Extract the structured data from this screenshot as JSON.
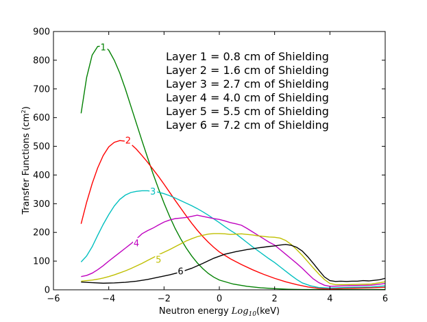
{
  "chart_data": {
    "type": "line",
    "xlabel_prefix": "Neutron energy ",
    "xlabel_log_base": "Log",
    "xlabel_log_sub": "10",
    "xlabel_unit": "(keV)",
    "ylabel_main": "Transfer Functions (cm",
    "ylabel_sup": "2",
    "ylabel_close": ")",
    "xlim": [
      -6,
      6
    ],
    "ylim": [
      0,
      900
    ],
    "xticks": [
      -6,
      -4,
      -2,
      0,
      2,
      4,
      6
    ],
    "xtick_labels": [
      "−6",
      "−4",
      "−2",
      "0",
      "2",
      "4",
      "6"
    ],
    "yticks": [
      0,
      100,
      200,
      300,
      400,
      500,
      600,
      700,
      800,
      900
    ],
    "ytick_labels": [
      "0",
      "100",
      "200",
      "300",
      "400",
      "500",
      "600",
      "700",
      "800",
      "900"
    ],
    "legend": [
      "Layer 1 = 0.8 cm of Shielding",
      "Layer 2 = 1.6 cm of Shielding",
      "Layer 3 = 2.7 cm of Shielding",
      "Layer 4 = 4.0 cm of Shielding",
      "Layer 5 = 5.5 cm of Shielding",
      "Layer 6 = 7.2 cm of Shielding"
    ],
    "series": [
      {
        "name": "1",
        "color": "#008000",
        "label_at": [
          -4.2,
          845
        ],
        "points": [
          [
            -5,
            615
          ],
          [
            -4.8,
            740
          ],
          [
            -4.6,
            818
          ],
          [
            -4.4,
            848
          ],
          [
            -4.2,
            850
          ],
          [
            -4.0,
            835
          ],
          [
            -3.8,
            800
          ],
          [
            -3.6,
            755
          ],
          [
            -3.4,
            700
          ],
          [
            -3.2,
            640
          ],
          [
            -3.0,
            580
          ],
          [
            -2.8,
            520
          ],
          [
            -2.6,
            462
          ],
          [
            -2.4,
            405
          ],
          [
            -2.2,
            352
          ],
          [
            -2.0,
            302
          ],
          [
            -1.8,
            256
          ],
          [
            -1.6,
            214
          ],
          [
            -1.4,
            178
          ],
          [
            -1.2,
            146
          ],
          [
            -1.0,
            118
          ],
          [
            -0.8,
            94
          ],
          [
            -0.6,
            74
          ],
          [
            -0.4,
            57
          ],
          [
            -0.2,
            44
          ],
          [
            0,
            34
          ],
          [
            0.5,
            20
          ],
          [
            1.0,
            12
          ],
          [
            1.5,
            7
          ],
          [
            2.0,
            4
          ],
          [
            2.5,
            2
          ],
          [
            3.0,
            1
          ],
          [
            4.0,
            1
          ],
          [
            5.0,
            1
          ],
          [
            6.0,
            1
          ]
        ]
      },
      {
        "name": "2",
        "color": "#ff0000",
        "label_at": [
          -3.3,
          520
        ],
        "points": [
          [
            -5,
            230
          ],
          [
            -4.8,
            305
          ],
          [
            -4.6,
            370
          ],
          [
            -4.4,
            425
          ],
          [
            -4.2,
            468
          ],
          [
            -4.0,
            498
          ],
          [
            -3.8,
            514
          ],
          [
            -3.6,
            520
          ],
          [
            -3.4,
            518
          ],
          [
            -3.2,
            508
          ],
          [
            -3.0,
            490
          ],
          [
            -2.8,
            468
          ],
          [
            -2.6,
            445
          ],
          [
            -2.4,
            420
          ],
          [
            -2.2,
            395
          ],
          [
            -2.0,
            368
          ],
          [
            -1.8,
            340
          ],
          [
            -1.6,
            312
          ],
          [
            -1.4,
            285
          ],
          [
            -1.2,
            258
          ],
          [
            -1.0,
            232
          ],
          [
            -0.8,
            208
          ],
          [
            -0.6,
            186
          ],
          [
            -0.4,
            166
          ],
          [
            -0.2,
            148
          ],
          [
            0,
            132
          ],
          [
            0.4,
            108
          ],
          [
            0.8,
            88
          ],
          [
            1.2,
            70
          ],
          [
            1.6,
            54
          ],
          [
            2.0,
            40
          ],
          [
            2.4,
            28
          ],
          [
            2.8,
            18
          ],
          [
            3.2,
            10
          ],
          [
            3.6,
            5
          ],
          [
            4.0,
            3
          ],
          [
            4.5,
            5
          ],
          [
            5.0,
            6
          ],
          [
            5.5,
            7
          ],
          [
            6.0,
            9
          ]
        ]
      },
      {
        "name": "3",
        "color": "#00bfbf",
        "label_at": [
          -2.4,
          343
        ],
        "points": [
          [
            -5,
            97
          ],
          [
            -4.8,
            118
          ],
          [
            -4.6,
            150
          ],
          [
            -4.4,
            190
          ],
          [
            -4.2,
            228
          ],
          [
            -4.0,
            262
          ],
          [
            -3.8,
            292
          ],
          [
            -3.6,
            315
          ],
          [
            -3.4,
            330
          ],
          [
            -3.2,
            339
          ],
          [
            -3.0,
            343
          ],
          [
            -2.8,
            345
          ],
          [
            -2.6,
            345
          ],
          [
            -2.4,
            343
          ],
          [
            -2.2,
            340
          ],
          [
            -2.0,
            335
          ],
          [
            -1.8,
            328
          ],
          [
            -1.6,
            320
          ],
          [
            -1.4,
            311
          ],
          [
            -1.2,
            302
          ],
          [
            -1.0,
            293
          ],
          [
            -0.8,
            283
          ],
          [
            -0.6,
            272
          ],
          [
            -0.4,
            260
          ],
          [
            -0.2,
            247
          ],
          [
            0,
            234
          ],
          [
            0.2,
            220
          ],
          [
            0.4,
            207
          ],
          [
            0.6,
            195
          ],
          [
            0.8,
            180
          ],
          [
            1.0,
            165
          ],
          [
            1.2,
            150
          ],
          [
            1.4,
            136
          ],
          [
            1.6,
            122
          ],
          [
            1.8,
            108
          ],
          [
            2.0,
            95
          ],
          [
            2.2,
            80
          ],
          [
            2.4,
            65
          ],
          [
            2.6,
            50
          ],
          [
            2.8,
            36
          ],
          [
            3.0,
            24
          ],
          [
            3.3,
            14
          ],
          [
            3.6,
            8
          ],
          [
            4.0,
            6
          ],
          [
            4.5,
            8
          ],
          [
            5.0,
            9
          ],
          [
            5.5,
            10
          ],
          [
            6.0,
            14
          ]
        ]
      },
      {
        "name": "4",
        "color": "#bf00bf",
        "label_at": [
          -3.0,
          162
        ],
        "points": [
          [
            -5,
            46
          ],
          [
            -4.8,
            50
          ],
          [
            -4.6,
            58
          ],
          [
            -4.4,
            70
          ],
          [
            -4.2,
            84
          ],
          [
            -4.0,
            100
          ],
          [
            -3.8,
            115
          ],
          [
            -3.6,
            130
          ],
          [
            -3.4,
            145
          ],
          [
            -3.2,
            160
          ],
          [
            -3.0,
            177
          ],
          [
            -2.8,
            195
          ],
          [
            -2.6,
            206
          ],
          [
            -2.4,
            215
          ],
          [
            -2.2,
            226
          ],
          [
            -2.0,
            236
          ],
          [
            -1.8,
            243
          ],
          [
            -1.6,
            248
          ],
          [
            -1.4,
            250
          ],
          [
            -1.2,
            252
          ],
          [
            -1.0,
            256
          ],
          [
            -0.8,
            260
          ],
          [
            -0.6,
            256
          ],
          [
            -0.4,
            252
          ],
          [
            -0.2,
            248
          ],
          [
            0,
            245
          ],
          [
            0.2,
            240
          ],
          [
            0.4,
            234
          ],
          [
            0.6,
            230
          ],
          [
            0.8,
            225
          ],
          [
            1.0,
            214
          ],
          [
            1.2,
            202
          ],
          [
            1.4,
            190
          ],
          [
            1.6,
            178
          ],
          [
            1.8,
            166
          ],
          [
            2.0,
            156
          ],
          [
            2.2,
            140
          ],
          [
            2.4,
            124
          ],
          [
            2.6,
            108
          ],
          [
            2.8,
            92
          ],
          [
            3.0,
            75
          ],
          [
            3.2,
            56
          ],
          [
            3.4,
            38
          ],
          [
            3.6,
            25
          ],
          [
            3.8,
            16
          ],
          [
            4.0,
            12
          ],
          [
            4.5,
            14
          ],
          [
            5.0,
            15
          ],
          [
            5.5,
            16
          ],
          [
            6.0,
            22
          ]
        ]
      },
      {
        "name": "5",
        "color": "#bfbf00",
        "label_at": [
          -2.2,
          105
        ],
        "points": [
          [
            -5,
            30
          ],
          [
            -4.8,
            32
          ],
          [
            -4.6,
            34
          ],
          [
            -4.4,
            37
          ],
          [
            -4.2,
            41
          ],
          [
            -4.0,
            46
          ],
          [
            -3.8,
            52
          ],
          [
            -3.6,
            59
          ],
          [
            -3.4,
            66
          ],
          [
            -3.2,
            74
          ],
          [
            -3.0,
            83
          ],
          [
            -2.8,
            92
          ],
          [
            -2.6,
            102
          ],
          [
            -2.4,
            112
          ],
          [
            -2.2,
            122
          ],
          [
            -2.0,
            131
          ],
          [
            -1.8,
            140
          ],
          [
            -1.6,
            150
          ],
          [
            -1.4,
            160
          ],
          [
            -1.2,
            170
          ],
          [
            -1.0,
            178
          ],
          [
            -0.8,
            185
          ],
          [
            -0.6,
            190
          ],
          [
            -0.4,
            194
          ],
          [
            -0.2,
            196
          ],
          [
            0,
            196
          ],
          [
            0.2,
            195
          ],
          [
            0.4,
            193
          ],
          [
            0.6,
            194
          ],
          [
            0.8,
            195
          ],
          [
            1.0,
            193
          ],
          [
            1.2,
            191
          ],
          [
            1.4,
            188
          ],
          [
            1.6,
            186
          ],
          [
            1.8,
            184
          ],
          [
            2.0,
            183
          ],
          [
            2.2,
            180
          ],
          [
            2.4,
            172
          ],
          [
            2.6,
            158
          ],
          [
            2.8,
            140
          ],
          [
            3.0,
            120
          ],
          [
            3.2,
            98
          ],
          [
            3.4,
            76
          ],
          [
            3.6,
            55
          ],
          [
            3.8,
            36
          ],
          [
            4.0,
            22
          ],
          [
            4.2,
            18
          ],
          [
            4.5,
            18
          ],
          [
            5.0,
            19
          ],
          [
            5.5,
            20
          ],
          [
            6.0,
            28
          ]
        ]
      },
      {
        "name": "6",
        "color": "#000000",
        "label_at": [
          -1.4,
          65
        ],
        "points": [
          [
            -5,
            27
          ],
          [
            -4.6,
            25
          ],
          [
            -4.2,
            23
          ],
          [
            -3.8,
            24
          ],
          [
            -3.4,
            26
          ],
          [
            -3.0,
            30
          ],
          [
            -2.6,
            36
          ],
          [
            -2.2,
            44
          ],
          [
            -1.8,
            52
          ],
          [
            -1.4,
            62
          ],
          [
            -1.0,
            75
          ],
          [
            -0.6,
            92
          ],
          [
            -0.2,
            110
          ],
          [
            0.2,
            124
          ],
          [
            0.6,
            133
          ],
          [
            1.0,
            140
          ],
          [
            1.4,
            146
          ],
          [
            1.8,
            151
          ],
          [
            2.0,
            153
          ],
          [
            2.2,
            156
          ],
          [
            2.4,
            158
          ],
          [
            2.6,
            155
          ],
          [
            2.8,
            148
          ],
          [
            3.0,
            135
          ],
          [
            3.2,
            115
          ],
          [
            3.4,
            92
          ],
          [
            3.6,
            68
          ],
          [
            3.8,
            45
          ],
          [
            4.0,
            32
          ],
          [
            4.2,
            29
          ],
          [
            4.4,
            30
          ],
          [
            4.6,
            29
          ],
          [
            4.8,
            30
          ],
          [
            5.0,
            30
          ],
          [
            5.2,
            32
          ],
          [
            5.4,
            31
          ],
          [
            5.6,
            33
          ],
          [
            5.8,
            35
          ],
          [
            6.0,
            40
          ]
        ]
      }
    ]
  }
}
